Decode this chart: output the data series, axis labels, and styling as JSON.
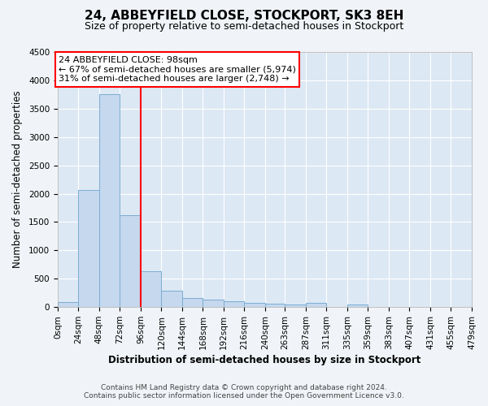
{
  "title": "24, ABBEYFIELD CLOSE, STOCKPORT, SK3 8EH",
  "subtitle": "Size of property relative to semi-detached houses in Stockport",
  "xlabel": "Distribution of semi-detached houses by size in Stockport",
  "ylabel": "Number of semi-detached properties",
  "bin_edges": [
    0,
    24,
    48,
    72,
    96,
    120,
    144,
    168,
    192,
    216,
    240,
    263,
    287,
    311,
    335,
    359,
    383,
    407,
    431,
    455,
    479
  ],
  "bin_counts": [
    85,
    2070,
    3750,
    1620,
    635,
    290,
    165,
    130,
    100,
    80,
    55,
    40,
    75,
    0,
    40,
    0,
    0,
    0,
    0,
    0
  ],
  "bar_color": "#c5d8ed",
  "bar_edge_color": "#7badd4",
  "red_line_x": 96,
  "ylim": [
    0,
    4500
  ],
  "yticks": [
    0,
    500,
    1000,
    1500,
    2000,
    2500,
    3000,
    3500,
    4000,
    4500
  ],
  "annotation_line1": "24 ABBEYFIELD CLOSE: 98sqm",
  "annotation_line2": "← 67% of semi-detached houses are smaller (5,974)",
  "annotation_line3": "31% of semi-detached houses are larger (2,748) →",
  "footer_line1": "Contains HM Land Registry data © Crown copyright and database right 2024.",
  "footer_line2": "Contains public sector information licensed under the Open Government Licence v3.0.",
  "bg_color": "#f0f4f8",
  "plot_bg_color": "#dce8f4",
  "grid_color": "#ffffff",
  "title_fontsize": 11,
  "subtitle_fontsize": 9,
  "axis_label_fontsize": 8.5,
  "tick_fontsize": 7.5,
  "annotation_fontsize": 8,
  "footer_fontsize": 6.5
}
